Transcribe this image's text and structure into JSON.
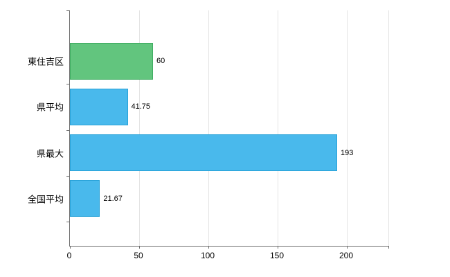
{
  "chart_data": {
    "type": "bar",
    "orientation": "horizontal",
    "title": "",
    "xlabel": "",
    "ylabel": "",
    "categories": [
      "東住吉区",
      "県平均",
      "県最大",
      "全国平均"
    ],
    "series": [
      {
        "name": "values",
        "values": [
          60,
          41.75,
          193,
          21.67
        ]
      }
    ],
    "value_labels": [
      "60",
      "41.75",
      "193",
      "21.67"
    ],
    "xlim": [
      0,
      230
    ],
    "x_ticks": [
      0,
      50,
      100,
      150,
      200
    ],
    "x_tick_labels": [
      "0",
      "50",
      "100",
      "150",
      "200"
    ],
    "grid": true,
    "legend": false,
    "colors": {
      "bar_fills": [
        "#62c57e",
        "#49b9ec",
        "#49b9ec",
        "#49b9ec"
      ],
      "bar_borders": [
        "#3eab60",
        "#28a2d8",
        "#28a2d8",
        "#28a2d8"
      ],
      "grid": "#e4e4e4",
      "axis": "#6e6e6e",
      "text": "#000000",
      "background": "#ffffff"
    }
  }
}
